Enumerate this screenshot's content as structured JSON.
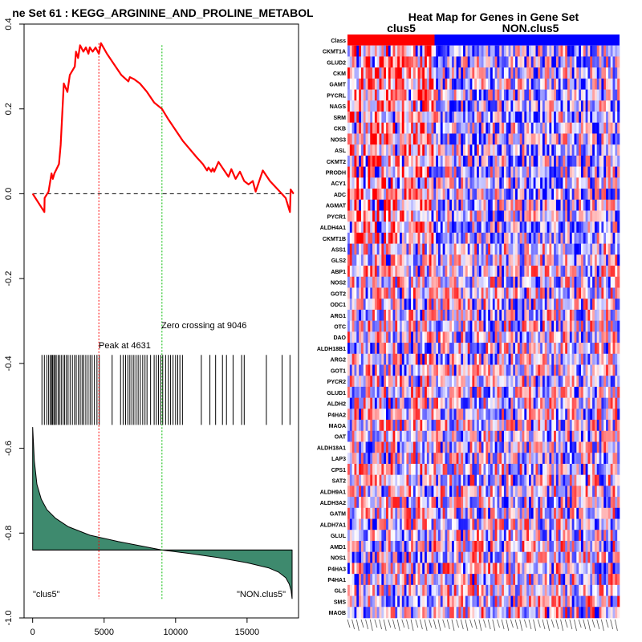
{
  "left_panel": {
    "title": "ne Set  61 : KEGG_ARGININE_AND_PROLINE_METABOL",
    "peak_label": "Peak at 4631",
    "zero_label": "Zero crossing at 9046",
    "left_group_label": "\"clus5\"",
    "right_group_label": "\"NON.clus5\"",
    "line_color": "#ff0000",
    "peak_line_color": "#ff0000",
    "zero_line_color": "#00bb00",
    "fill_color": "#3e8a6e"
  },
  "chart_data": [
    {
      "type": "line",
      "title": "ne Set  61 : KEGG_ARGININE_AND_PROLINE_METABOL",
      "xlim": [
        -600,
        18600
      ],
      "ylim": [
        -1.0,
        0.4
      ],
      "x_ticks": [
        0,
        5000,
        10000,
        15000
      ],
      "x_tick_labels": [
        "0",
        "5000",
        "10000",
        "15000"
      ],
      "y_ticks": [
        -1.0,
        -0.8,
        -0.6,
        -0.4,
        -0.2,
        0.0,
        0.2,
        0.4
      ],
      "y_tick_labels": [
        "-1.0",
        "-0.8",
        "-0.6",
        "-0.4",
        "-0.2",
        "0.0",
        "0.2",
        "0.4"
      ],
      "peak_x": 4631,
      "zero_crossing_x": 9046,
      "running_score": [
        [
          0,
          0.0
        ],
        [
          820,
          -0.043
        ],
        [
          840,
          -0.01
        ],
        [
          1110,
          0.005
        ],
        [
          1320,
          0.048
        ],
        [
          1410,
          0.035
        ],
        [
          1520,
          0.048
        ],
        [
          1840,
          0.07
        ],
        [
          1960,
          0.115
        ],
        [
          2180,
          0.26
        ],
        [
          2430,
          0.24
        ],
        [
          2600,
          0.28
        ],
        [
          2950,
          0.3
        ],
        [
          3030,
          0.335
        ],
        [
          3180,
          0.32
        ],
        [
          3320,
          0.35
        ],
        [
          3550,
          0.335
        ],
        [
          3720,
          0.345
        ],
        [
          3900,
          0.33
        ],
        [
          4000,
          0.345
        ],
        [
          4200,
          0.335
        ],
        [
          4400,
          0.345
        ],
        [
          4631,
          0.33
        ],
        [
          4780,
          0.355
        ],
        [
          5200,
          0.33
        ],
        [
          5700,
          0.305
        ],
        [
          6200,
          0.28
        ],
        [
          6700,
          0.265
        ],
        [
          6800,
          0.275
        ],
        [
          7100,
          0.27
        ],
        [
          7500,
          0.26
        ],
        [
          8000,
          0.24
        ],
        [
          8500,
          0.215
        ],
        [
          9046,
          0.2
        ],
        [
          9500,
          0.175
        ],
        [
          10000,
          0.15
        ],
        [
          10500,
          0.125
        ],
        [
          11000,
          0.105
        ],
        [
          11500,
          0.085
        ],
        [
          11900,
          0.07
        ],
        [
          12200,
          0.055
        ],
        [
          12300,
          0.062
        ],
        [
          12500,
          0.052
        ],
        [
          12600,
          0.06
        ],
        [
          12700,
          0.052
        ],
        [
          13000,
          0.075
        ],
        [
          13400,
          0.055
        ],
        [
          13700,
          0.04
        ],
        [
          13900,
          0.058
        ],
        [
          14200,
          0.035
        ],
        [
          14500,
          0.052
        ],
        [
          14800,
          0.03
        ],
        [
          15100,
          0.022
        ],
        [
          15400,
          0.03
        ],
        [
          15600,
          0.005
        ],
        [
          16100,
          0.055
        ],
        [
          16600,
          0.03
        ],
        [
          17100,
          0.012
        ],
        [
          17700,
          -0.01
        ],
        [
          18000,
          -0.043
        ],
        [
          18050,
          0.01
        ],
        [
          18250,
          0.0
        ]
      ],
      "hit_positions": [
        650,
        820,
        990,
        1120,
        1240,
        1320,
        1390,
        1480,
        1560,
        1650,
        1780,
        1880,
        2000,
        2130,
        2240,
        2360,
        2480,
        2620,
        2780,
        2930,
        3050,
        3200,
        3330,
        3460,
        3580,
        3720,
        3880,
        4020,
        4160,
        4320,
        4500,
        4660,
        5560,
        6150,
        6330,
        6500,
        6660,
        6800,
        6940,
        7080,
        7230,
        7380,
        7530,
        7700,
        7860,
        8000,
        8250,
        8500,
        8650,
        8800,
        8950,
        9100,
        9300,
        9500,
        9650,
        9820,
        10000,
        10150,
        10300,
        10480,
        11800,
        12400,
        12800,
        13280,
        13560,
        14020,
        14620,
        14800,
        16350,
        17450,
        18000
      ],
      "metric_curve": [
        [
          0,
          -0.55
        ],
        [
          120,
          -0.63
        ],
        [
          300,
          -0.685
        ],
        [
          600,
          -0.72
        ],
        [
          1000,
          -0.745
        ],
        [
          1600,
          -0.765
        ],
        [
          2500,
          -0.785
        ],
        [
          4000,
          -0.805
        ],
        [
          6000,
          -0.82
        ],
        [
          8000,
          -0.833
        ],
        [
          9046,
          -0.84
        ],
        [
          11000,
          -0.848
        ],
        [
          13000,
          -0.858
        ],
        [
          15000,
          -0.87
        ],
        [
          16500,
          -0.882
        ],
        [
          17200,
          -0.892
        ],
        [
          17700,
          -0.905
        ],
        [
          17950,
          -0.92
        ],
        [
          18080,
          -0.935
        ],
        [
          18150,
          -0.955
        ]
      ],
      "metric_baseline": -0.84
    },
    {
      "type": "heatmap",
      "title": "Heat Map for Genes in Gene Set",
      "column_groups": [
        {
          "name": "clus5",
          "fraction": 0.32,
          "color": "#ff0000"
        },
        {
          "name": "NON.clus5",
          "fraction": 0.68,
          "color": "#0000ff"
        }
      ],
      "row_labels": [
        "Class",
        "CKMT1A",
        "GLUD2",
        "CKM",
        "GAMT",
        "PYCRL",
        "NAGS",
        "SRM",
        "CKB",
        "NOS3",
        "ASL",
        "CKMT2",
        "PRODH",
        "ACY1",
        "ADC",
        "AGMAT",
        "PYCR1",
        "ALDH4A1",
        "CKMT1B",
        "ASS1",
        "GLS2",
        "ABP1",
        "NOS2",
        "GOT2",
        "ODC1",
        "ARG1",
        "OTC",
        "DAO",
        "ALDH18B1",
        "ARG2",
        "GOT1",
        "PYCR2",
        "GLUD1",
        "ALDH2",
        "P4HA2",
        "MAOA",
        "OAT",
        "ALDH18A1",
        "LAP3",
        "CPS1",
        "SAT2",
        "ALDH9A1",
        "ALDH3A2",
        "GATM",
        "ALDH7A1",
        "GLUL",
        "AMD1",
        "NOS1",
        "P4HA3",
        "P4HA1",
        "GLS",
        "SMS",
        "MAOB"
      ],
      "n_columns": 120,
      "value_scale": [
        -1,
        1
      ],
      "low_color": "#0000ff",
      "mid_color": "#ffffff",
      "high_color": "#ff0000"
    }
  ]
}
